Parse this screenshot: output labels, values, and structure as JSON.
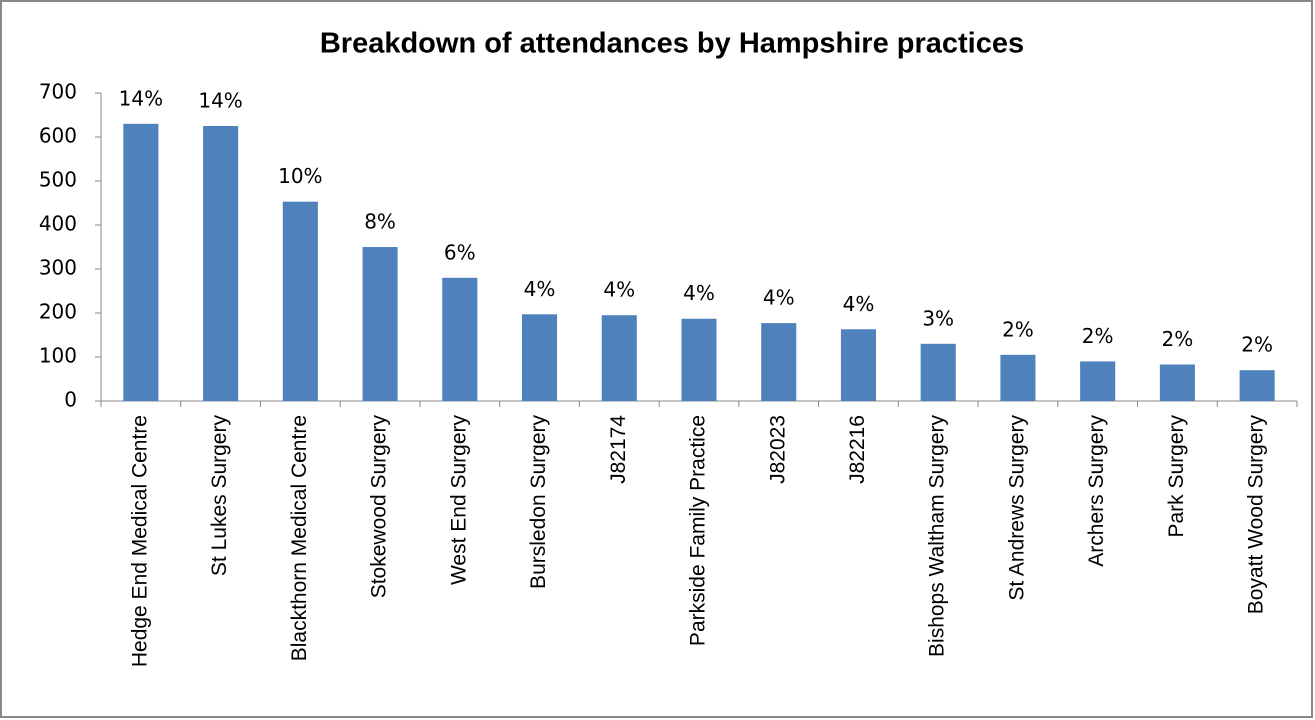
{
  "chart_data": {
    "type": "bar",
    "title": "Breakdown of attendances by Hampshire practices",
    "categories": [
      "Hedge End Medical Centre",
      "St Lukes Surgery",
      "Blackthorn Medical Centre",
      "Stokewood Surgery",
      "West End Surgery",
      "Bursledon Surgery",
      "J82174",
      "Parkside Family Practice",
      "J82023",
      "J82216",
      "Bishops Waltham Surgery",
      "St Andrews Surgery",
      "Archers Surgery",
      "Park Surgery",
      "Boyatt Wood Surgery"
    ],
    "values": [
      630,
      625,
      453,
      350,
      280,
      197,
      195,
      187,
      177,
      163,
      130,
      105,
      90,
      83,
      70
    ],
    "share_labels": [
      "14%",
      "14%",
      "10%",
      "8%",
      "6%",
      "4%",
      "4%",
      "4%",
      "4%",
      "4%",
      "3%",
      "2%",
      "2%",
      "2%",
      "2%"
    ],
    "color": "#4f81bd",
    "ylim": [
      0,
      700
    ],
    "yticks": [
      0,
      100,
      200,
      300,
      400,
      500,
      600,
      700
    ],
    "grid": false
  }
}
